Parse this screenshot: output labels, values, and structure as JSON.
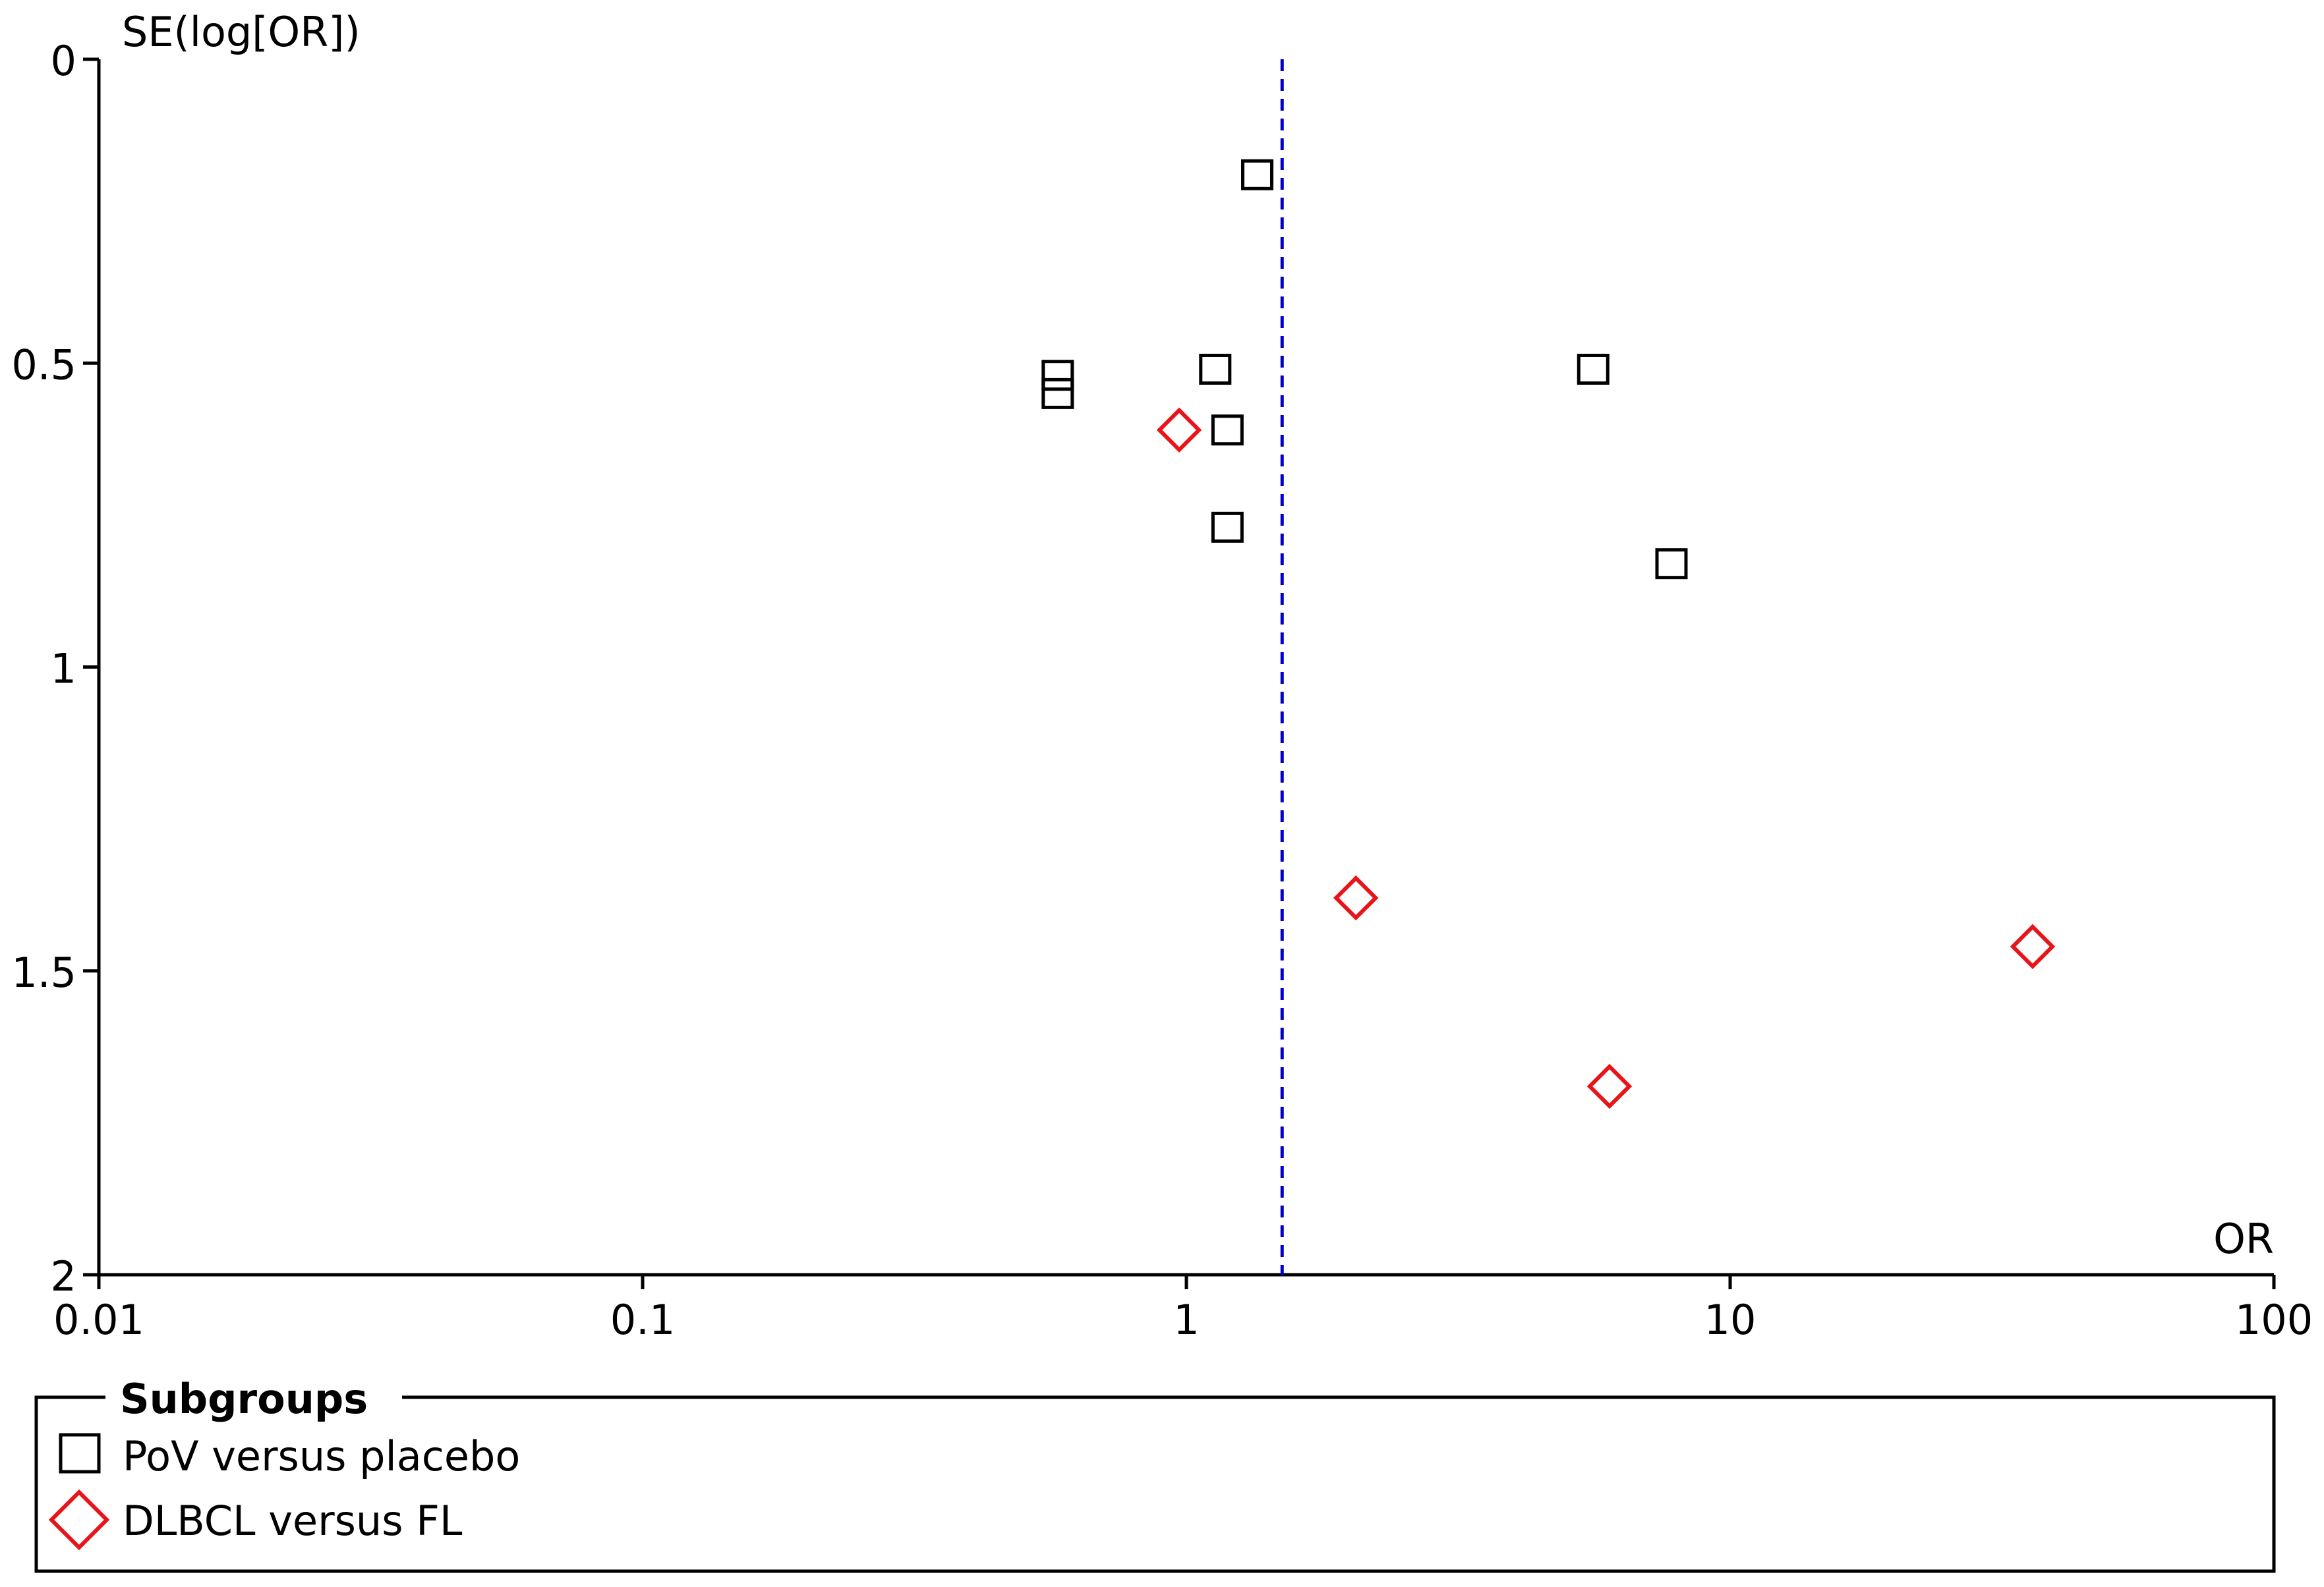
{
  "chart_data": {
    "type": "scatter",
    "title": "",
    "xlabel": "OR",
    "ylabel": "SE(log[OR])",
    "x_scale": "log",
    "xlim": [
      0.01,
      100
    ],
    "ylim": [
      0,
      2
    ],
    "y_inverted": true,
    "xticks": [
      "0.01",
      "0.1",
      "1",
      "10",
      "100"
    ],
    "xtick_values": [
      0.01,
      0.1,
      1,
      10,
      100
    ],
    "yticks": [
      "0",
      "0.5",
      "1",
      "1.5",
      "2"
    ],
    "ytick_values": [
      0,
      0.5,
      1,
      1.5,
      2
    ],
    "grid": false,
    "reference_line": {
      "x": 1.5,
      "style": "dashed",
      "color": "#0000cc"
    },
    "legend": {
      "title": "Subgroups",
      "placement": "bottom",
      "entries": [
        "PoV versus placebo",
        "DLBCL versus FL"
      ]
    },
    "series": [
      {
        "name": "PoV versus placebo",
        "marker": "square",
        "color": "#000000",
        "points": [
          {
            "x": 1.35,
            "y": 0.19
          },
          {
            "x": 1.13,
            "y": 0.51
          },
          {
            "x": 0.58,
            "y": 0.52
          },
          {
            "x": 0.58,
            "y": 0.55
          },
          {
            "x": 1.19,
            "y": 0.61
          },
          {
            "x": 1.19,
            "y": 0.77
          },
          {
            "x": 5.6,
            "y": 0.51
          },
          {
            "x": 7.8,
            "y": 0.83
          }
        ]
      },
      {
        "name": "DLBCL versus FL",
        "marker": "diamond",
        "color": "#e8141a",
        "points": [
          {
            "x": 0.97,
            "y": 0.61
          },
          {
            "x": 2.05,
            "y": 1.38
          },
          {
            "x": 6.0,
            "y": 1.69
          },
          {
            "x": 36.0,
            "y": 1.46
          }
        ]
      }
    ]
  }
}
